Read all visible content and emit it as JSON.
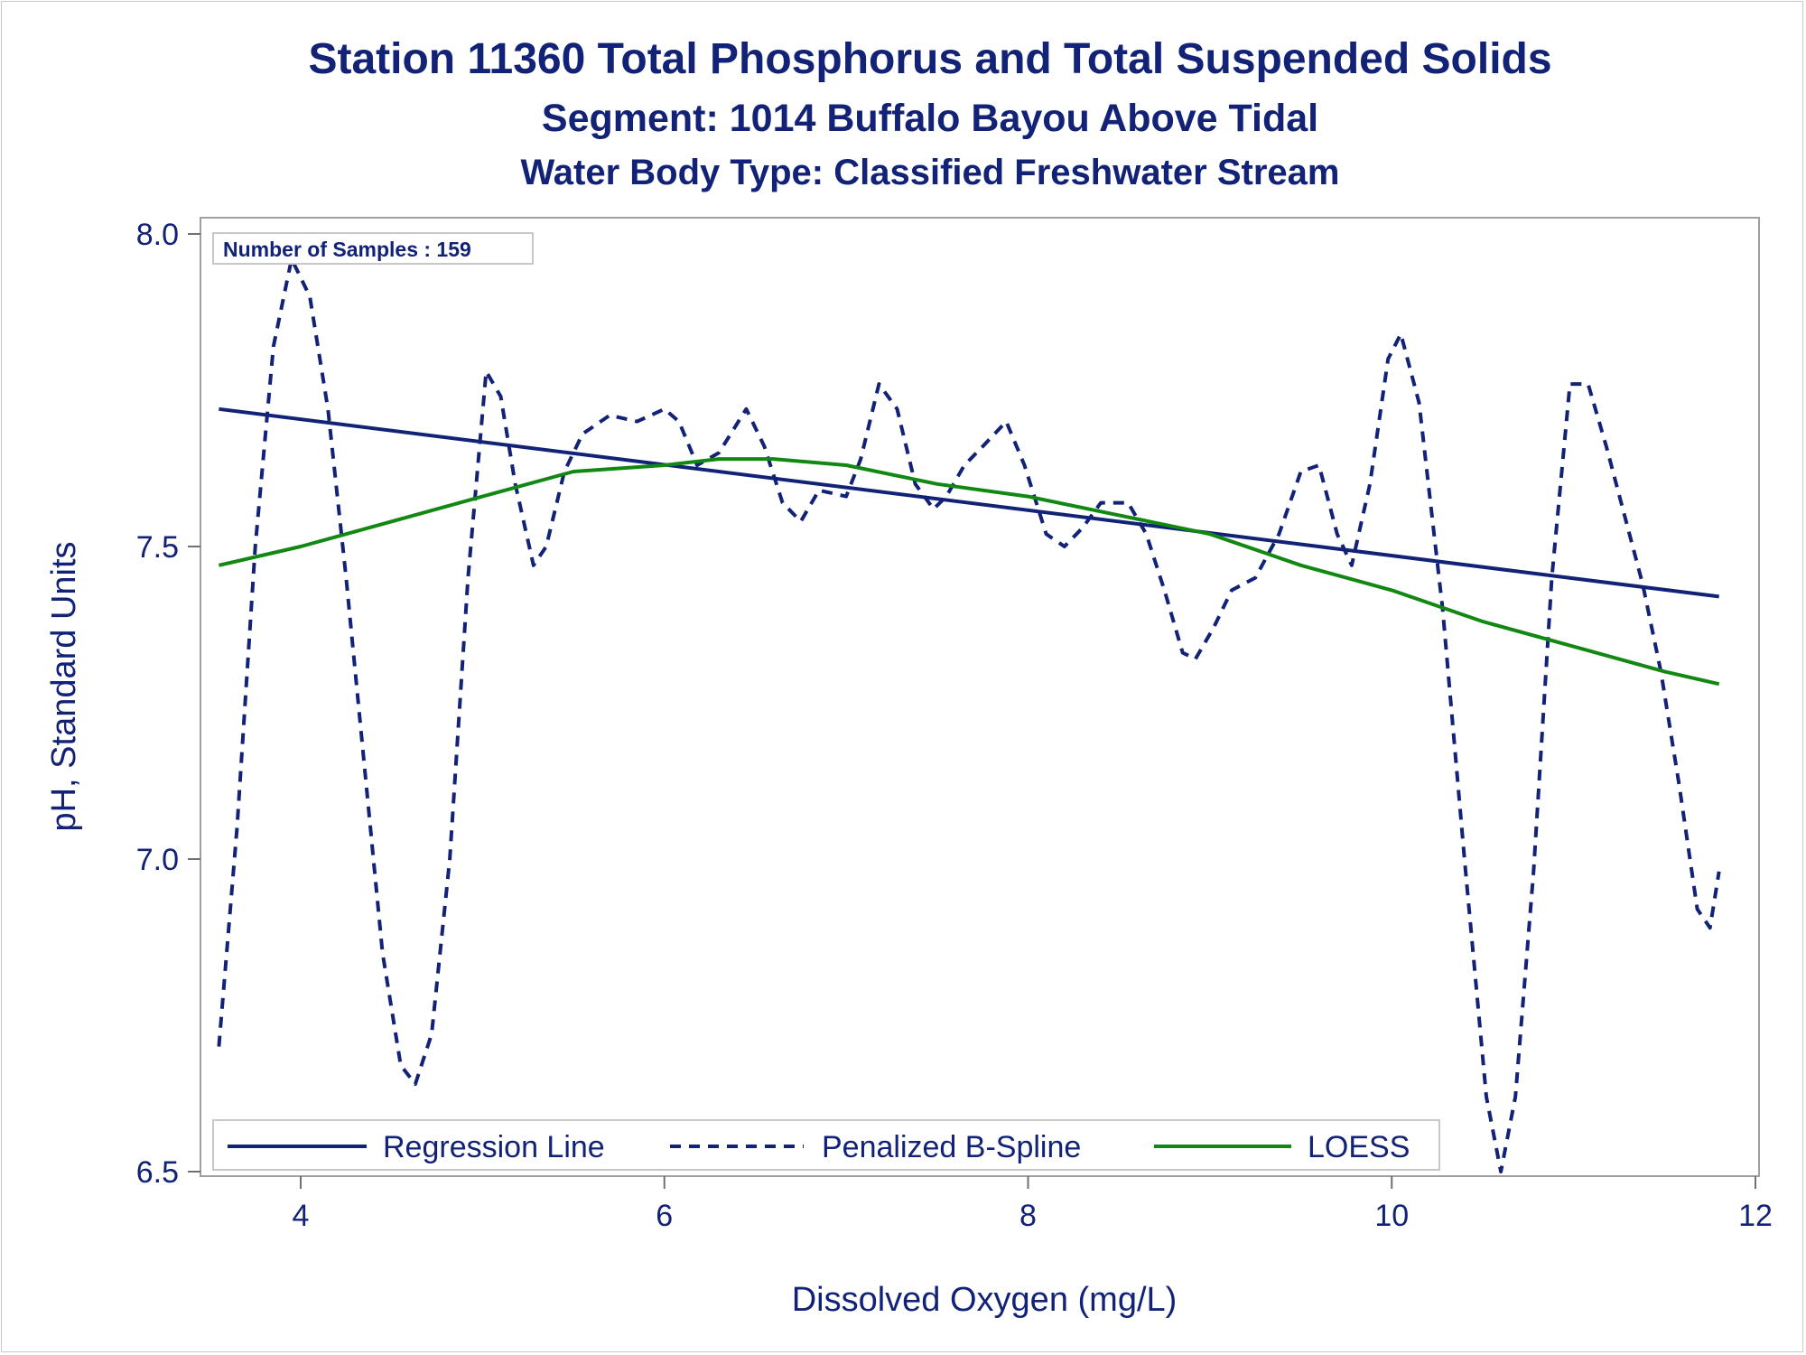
{
  "chart_data": {
    "type": "line",
    "title": "Station 11360  Total Phosphorus and Total Suspended Solids",
    "subtitle": "Segment: 1014  Buffalo Bayou Above Tidal",
    "subtitle2": "Water Body Type: Classified Freshwater Stream",
    "xlabel": "Dissolved Oxygen (mg/L)",
    "ylabel": "pH, Standard Units",
    "xlim": [
      3.5,
      12.2
    ],
    "ylim": [
      6.48,
      8.02
    ],
    "xticks": [
      4,
      6,
      8,
      10,
      12
    ],
    "yticks": [
      6.5,
      7.0,
      7.5,
      8.0
    ],
    "ytick_labels": [
      "6.5",
      "7.0",
      "7.5",
      "8.0"
    ],
    "grid": false,
    "annotation": "Number of Samples : 159",
    "legend_position": "bottom-inside",
    "series": [
      {
        "name": "Regression Line",
        "style": "solid",
        "color": "#112277",
        "points": [
          [
            3.55,
            7.72
          ],
          [
            11.8,
            7.42
          ]
        ]
      },
      {
        "name": "Penalized B-Spline",
        "style": "dashed",
        "color": "#112277",
        "points": [
          [
            3.55,
            6.7
          ],
          [
            3.65,
            7.05
          ],
          [
            3.75,
            7.5
          ],
          [
            3.85,
            7.82
          ],
          [
            3.95,
            7.96
          ],
          [
            4.05,
            7.9
          ],
          [
            4.15,
            7.72
          ],
          [
            4.25,
            7.45
          ],
          [
            4.35,
            7.15
          ],
          [
            4.45,
            6.85
          ],
          [
            4.55,
            6.67
          ],
          [
            4.63,
            6.64
          ],
          [
            4.72,
            6.72
          ],
          [
            4.82,
            7.0
          ],
          [
            4.92,
            7.45
          ],
          [
            5.02,
            7.78
          ],
          [
            5.1,
            7.74
          ],
          [
            5.18,
            7.6
          ],
          [
            5.28,
            7.47
          ],
          [
            5.35,
            7.5
          ],
          [
            5.45,
            7.62
          ],
          [
            5.55,
            7.68
          ],
          [
            5.7,
            7.71
          ],
          [
            5.85,
            7.7
          ],
          [
            6.0,
            7.72
          ],
          [
            6.08,
            7.7
          ],
          [
            6.18,
            7.63
          ],
          [
            6.3,
            7.65
          ],
          [
            6.45,
            7.72
          ],
          [
            6.55,
            7.66
          ],
          [
            6.65,
            7.57
          ],
          [
            6.75,
            7.54
          ],
          [
            6.85,
            7.59
          ],
          [
            7.0,
            7.58
          ],
          [
            7.08,
            7.64
          ],
          [
            7.18,
            7.76
          ],
          [
            7.28,
            7.72
          ],
          [
            7.38,
            7.6
          ],
          [
            7.48,
            7.56
          ],
          [
            7.55,
            7.58
          ],
          [
            7.65,
            7.63
          ],
          [
            7.75,
            7.66
          ],
          [
            7.88,
            7.7
          ],
          [
            7.98,
            7.63
          ],
          [
            8.1,
            7.52
          ],
          [
            8.2,
            7.5
          ],
          [
            8.3,
            7.53
          ],
          [
            8.4,
            7.57
          ],
          [
            8.55,
            7.57
          ],
          [
            8.65,
            7.52
          ],
          [
            8.75,
            7.43
          ],
          [
            8.85,
            7.33
          ],
          [
            8.92,
            7.32
          ],
          [
            9.02,
            7.37
          ],
          [
            9.12,
            7.43
          ],
          [
            9.25,
            7.45
          ],
          [
            9.38,
            7.52
          ],
          [
            9.5,
            7.62
          ],
          [
            9.6,
            7.63
          ],
          [
            9.7,
            7.52
          ],
          [
            9.78,
            7.47
          ],
          [
            9.88,
            7.6
          ],
          [
            9.98,
            7.8
          ],
          [
            10.05,
            7.84
          ],
          [
            10.15,
            7.73
          ],
          [
            10.28,
            7.4
          ],
          [
            10.4,
            7.0
          ],
          [
            10.52,
            6.62
          ],
          [
            10.6,
            6.5
          ],
          [
            10.68,
            6.62
          ],
          [
            10.78,
            6.98
          ],
          [
            10.88,
            7.45
          ],
          [
            10.98,
            7.76
          ],
          [
            11.08,
            7.76
          ],
          [
            11.18,
            7.66
          ],
          [
            11.28,
            7.55
          ],
          [
            11.38,
            7.44
          ],
          [
            11.48,
            7.3
          ],
          [
            11.58,
            7.12
          ],
          [
            11.68,
            6.92
          ],
          [
            11.75,
            6.89
          ],
          [
            11.8,
            6.98
          ]
        ]
      },
      {
        "name": "LOESS",
        "style": "solid",
        "color": "#118811",
        "points": [
          [
            3.55,
            7.47
          ],
          [
            4.0,
            7.5
          ],
          [
            4.5,
            7.54
          ],
          [
            5.0,
            7.58
          ],
          [
            5.5,
            7.62
          ],
          [
            6.0,
            7.63
          ],
          [
            6.3,
            7.64
          ],
          [
            6.6,
            7.64
          ],
          [
            7.0,
            7.63
          ],
          [
            7.5,
            7.6
          ],
          [
            8.0,
            7.58
          ],
          [
            8.5,
            7.55
          ],
          [
            9.0,
            7.52
          ],
          [
            9.5,
            7.47
          ],
          [
            10.0,
            7.43
          ],
          [
            10.5,
            7.38
          ],
          [
            11.0,
            7.34
          ],
          [
            11.5,
            7.3
          ],
          [
            11.8,
            7.28
          ]
        ]
      }
    ]
  }
}
